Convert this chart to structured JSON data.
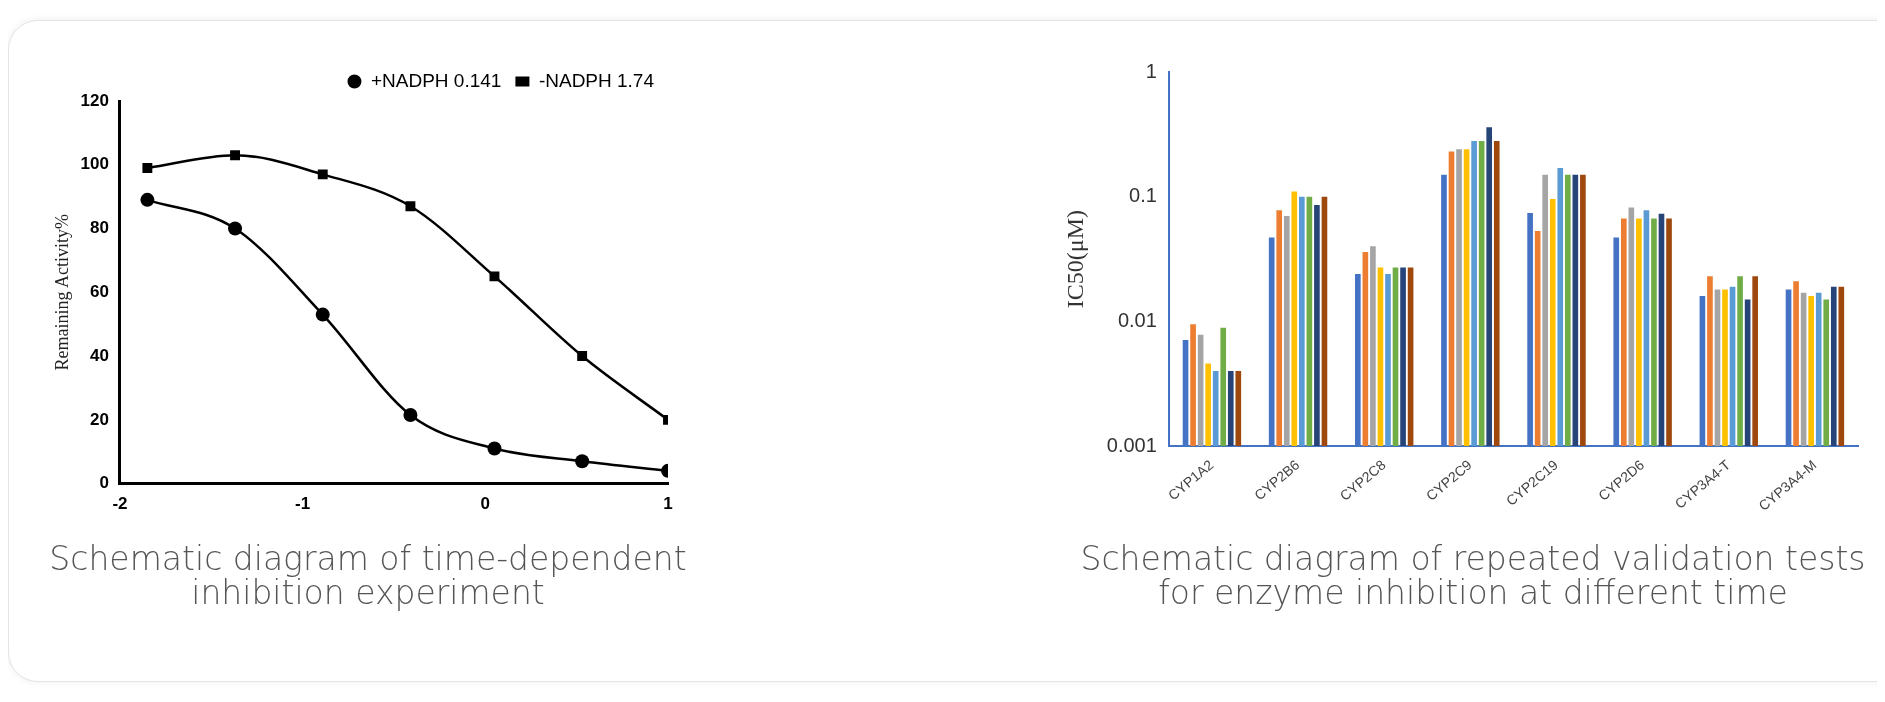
{
  "chart_data": [
    {
      "type": "line",
      "title": "Schematic diagram of time-dependent inhibition experiment",
      "ylabel": "Remaining Activity%",
      "xlim": [
        -2,
        1
      ],
      "xticks": [
        -2,
        -1,
        0,
        1
      ],
      "ylim": [
        0,
        120
      ],
      "yticks": [
        0,
        20,
        40,
        60,
        80,
        100,
        120
      ],
      "grid": false,
      "legend": "top right",
      "line_style": "solid",
      "series": [
        {
          "name": "+NADPH 0.141",
          "color": "#000000",
          "marker": "circle",
          "x": [
            -1.85,
            -1.37,
            -0.89,
            -0.41,
            0.05,
            0.53,
            1.0
          ],
          "values": [
            89,
            80,
            53,
            21.5,
            11,
            7,
            4
          ]
        },
        {
          "name": "-NADPH 1.74",
          "color": "#000000",
          "marker": "square",
          "x": [
            -1.85,
            -1.37,
            -0.89,
            -0.41,
            0.05,
            0.53,
            1.0
          ],
          "values": [
            99,
            103,
            97,
            87,
            65,
            40,
            20
          ]
        }
      ]
    },
    {
      "type": "bar",
      "title": "Schematic diagram of repeated validation tests for enzyme inhibition at different time",
      "ylabel": "IC50(μM)",
      "log": "y",
      "ylim": [
        0.001,
        1
      ],
      "yticks": [
        0.001,
        0.01,
        0.1,
        1
      ],
      "grid": false,
      "legend": false,
      "categories": [
        "CYP1A2",
        "CYP2B6",
        "CYP2C8",
        "CYP2C9",
        "CYP2C19",
        "CYP2D6",
        "CYP3A4-T",
        "CYP3A4-M"
      ],
      "series": [
        {
          "color": "#4472c4",
          "values": [
            0.0071,
            0.047,
            0.024,
            0.15,
            0.074,
            0.047,
            0.016,
            0.018
          ]
        },
        {
          "color": "#ed7d31",
          "values": [
            0.0095,
            0.078,
            0.036,
            0.23,
            0.053,
            0.067,
            0.023,
            0.021
          ]
        },
        {
          "color": "#a5a5a5",
          "values": [
            0.0078,
            0.07,
            0.04,
            0.24,
            0.15,
            0.082,
            0.018,
            0.017
          ]
        },
        {
          "color": "#ffc000",
          "values": [
            0.0046,
            0.11,
            0.027,
            0.24,
            0.096,
            0.067,
            0.018,
            0.016
          ]
        },
        {
          "color": "#5b9bd5",
          "values": [
            0.004,
            0.1,
            0.024,
            0.28,
            0.17,
            0.078,
            0.019,
            0.017
          ]
        },
        {
          "color": "#70ad47",
          "values": [
            0.0089,
            0.1,
            0.027,
            0.28,
            0.15,
            0.067,
            0.023,
            0.015
          ]
        },
        {
          "color": "#264478",
          "values": [
            0.004,
            0.086,
            0.027,
            0.36,
            0.15,
            0.073,
            0.015,
            0.019
          ]
        },
        {
          "color": "#9e480e",
          "values": [
            0.004,
            0.1,
            0.027,
            0.28,
            0.15,
            0.067,
            0.023,
            0.019
          ]
        }
      ]
    }
  ]
}
